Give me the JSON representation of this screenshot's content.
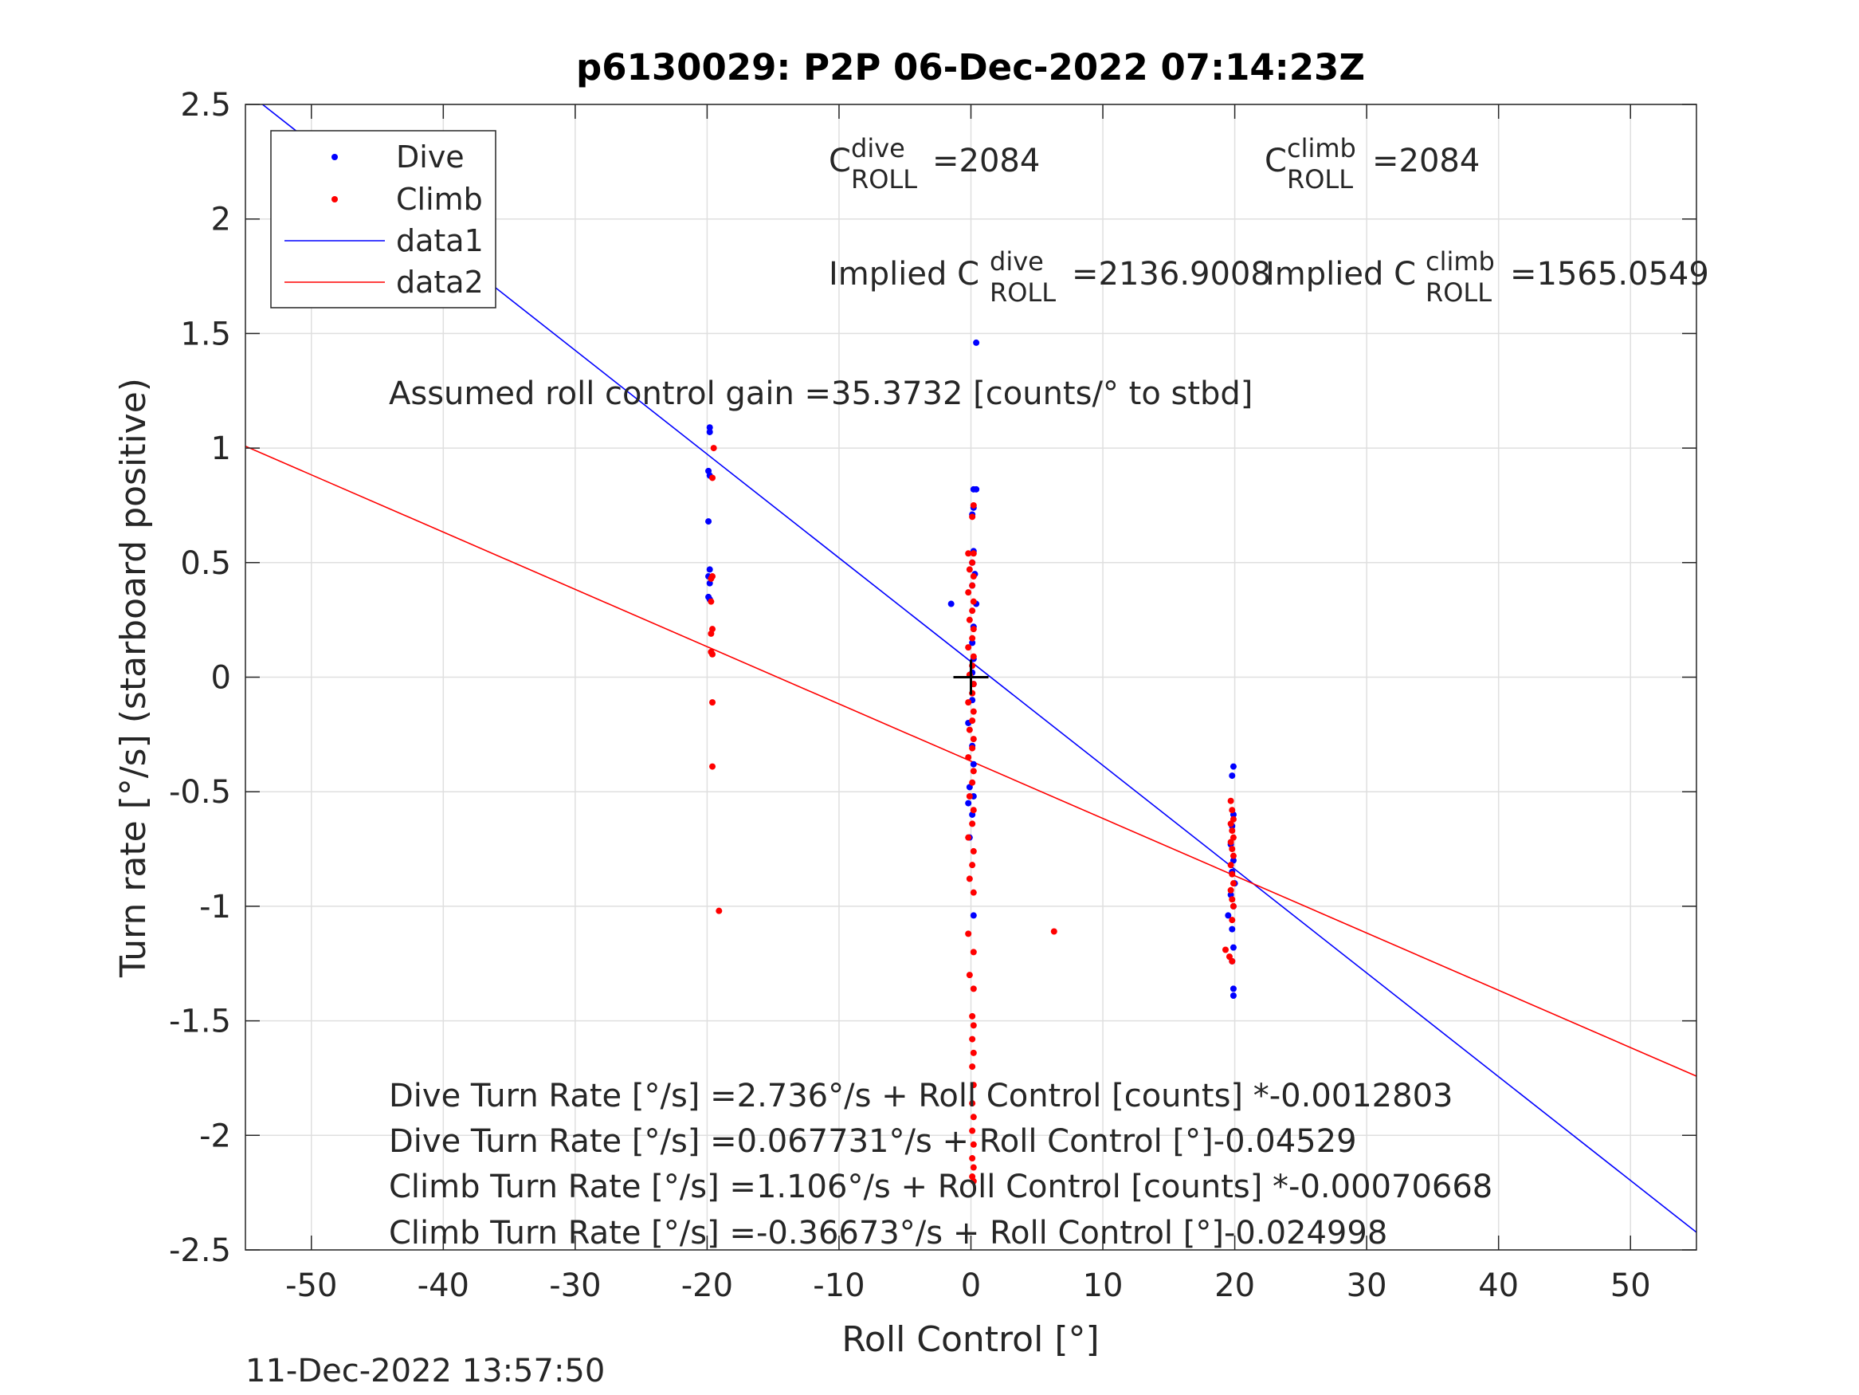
{
  "chart_data": {
    "type": "scatter",
    "title": "p6130029: P2P 06-Dec-2022 07:14:23Z",
    "xlabel": "Roll Control [°]",
    "ylabel": "Turn rate [°/s] (starboard positive)",
    "xlim": [
      -55,
      55
    ],
    "ylim": [
      -2.5,
      2.5
    ],
    "xticks": [
      -50,
      -40,
      -30,
      -20,
      -10,
      0,
      10,
      20,
      30,
      40,
      50
    ],
    "yticks": [
      -2.5,
      -2,
      -1.5,
      -1,
      -0.5,
      0,
      0.5,
      1,
      1.5,
      2,
      2.5
    ],
    "xtick_labels": [
      "-50",
      "-40",
      "-30",
      "-20",
      "-10",
      "0",
      "10",
      "20",
      "30",
      "40",
      "50"
    ],
    "ytick_labels": [
      "-2.5",
      "-2",
      "-1.5",
      "-1",
      "-0.5",
      "0",
      "0.5",
      "1",
      "1.5",
      "2",
      "2.5"
    ],
    "grid": true,
    "legend_position": "top-left",
    "series": [
      {
        "name": "Dive",
        "kind": "scatter",
        "color": "#0000ff",
        "points": [
          [
            -19.8,
            1.09
          ],
          [
            -19.8,
            1.07
          ],
          [
            -19.9,
            0.9
          ],
          [
            -19.8,
            0.88
          ],
          [
            -19.9,
            0.68
          ],
          [
            -19.8,
            0.47
          ],
          [
            -19.9,
            0.44
          ],
          [
            -19.8,
            0.41
          ],
          [
            -19.9,
            0.35
          ],
          [
            -19.8,
            0.34
          ],
          [
            0.4,
            1.46
          ],
          [
            0.2,
            0.82
          ],
          [
            0.4,
            0.82
          ],
          [
            0.2,
            0.74
          ],
          [
            0.1,
            0.71
          ],
          [
            0.2,
            0.55
          ],
          [
            0.1,
            0.5
          ],
          [
            0.3,
            0.45
          ],
          [
            0.1,
            0.4
          ],
          [
            0.4,
            0.32
          ],
          [
            -1.5,
            0.32
          ],
          [
            0.2,
            0.22
          ],
          [
            0.1,
            0.15
          ],
          [
            0.2,
            0.08
          ],
          [
            0.1,
            0.02
          ],
          [
            0.2,
            -0.03
          ],
          [
            0.1,
            -0.1
          ],
          [
            -0.2,
            -0.2
          ],
          [
            0.1,
            -0.3
          ],
          [
            0.2,
            -0.38
          ],
          [
            -0.1,
            -0.48
          ],
          [
            0.2,
            -0.52
          ],
          [
            -0.2,
            -0.55
          ],
          [
            0.1,
            -0.6
          ],
          [
            -0.1,
            -0.7
          ],
          [
            0.2,
            -1.04
          ],
          [
            19.9,
            -0.39
          ],
          [
            19.8,
            -0.43
          ],
          [
            19.9,
            -0.6
          ],
          [
            19.8,
            -0.65
          ],
          [
            19.7,
            -0.73
          ],
          [
            19.9,
            -0.8
          ],
          [
            19.8,
            -0.85
          ],
          [
            20.0,
            -0.9
          ],
          [
            19.7,
            -0.95
          ],
          [
            19.9,
            -1.0
          ],
          [
            19.5,
            -1.04
          ],
          [
            19.8,
            -1.1
          ],
          [
            19.9,
            -1.18
          ],
          [
            19.8,
            -1.24
          ],
          [
            19.9,
            -1.36
          ],
          [
            19.9,
            -1.39
          ]
        ]
      },
      {
        "name": "Climb",
        "kind": "scatter",
        "color": "#ff0000",
        "points": [
          [
            -19.5,
            1.0
          ],
          [
            -19.6,
            0.87
          ],
          [
            -19.6,
            0.44
          ],
          [
            -19.7,
            0.43
          ],
          [
            -19.7,
            0.33
          ],
          [
            -19.6,
            0.21
          ],
          [
            -19.7,
            0.19
          ],
          [
            -19.7,
            0.11
          ],
          [
            -19.6,
            0.1
          ],
          [
            -19.6,
            -0.11
          ],
          [
            -19.6,
            -0.39
          ],
          [
            -19.1,
            -1.02
          ],
          [
            6.3,
            -1.11
          ],
          [
            0.2,
            0.75
          ],
          [
            0.1,
            0.7
          ],
          [
            -0.2,
            0.54
          ],
          [
            0.2,
            0.54
          ],
          [
            0.1,
            0.5
          ],
          [
            -0.1,
            0.47
          ],
          [
            0.2,
            0.44
          ],
          [
            0.1,
            0.4
          ],
          [
            -0.2,
            0.37
          ],
          [
            0.2,
            0.33
          ],
          [
            0.1,
            0.29
          ],
          [
            -0.1,
            0.25
          ],
          [
            0.2,
            0.21
          ],
          [
            0.1,
            0.17
          ],
          [
            -0.2,
            0.13
          ],
          [
            0.2,
            0.09
          ],
          [
            0.1,
            0.05
          ],
          [
            -0.1,
            0.01
          ],
          [
            0.2,
            -0.03
          ],
          [
            0.1,
            -0.07
          ],
          [
            -0.2,
            -0.11
          ],
          [
            0.2,
            -0.15
          ],
          [
            0.1,
            -0.19
          ],
          [
            -0.1,
            -0.23
          ],
          [
            0.2,
            -0.27
          ],
          [
            0.1,
            -0.31
          ],
          [
            -0.2,
            -0.35
          ],
          [
            0.2,
            -0.41
          ],
          [
            0.1,
            -0.46
          ],
          [
            -0.1,
            -0.52
          ],
          [
            0.2,
            -0.58
          ],
          [
            0.1,
            -0.64
          ],
          [
            -0.2,
            -0.7
          ],
          [
            0.2,
            -0.76
          ],
          [
            0.1,
            -0.82
          ],
          [
            -0.1,
            -0.88
          ],
          [
            0.2,
            -0.94
          ],
          [
            -0.2,
            -1.12
          ],
          [
            0.2,
            -1.2
          ],
          [
            -0.1,
            -1.3
          ],
          [
            0.2,
            -1.36
          ],
          [
            0.1,
            -1.48
          ],
          [
            0.2,
            -1.52
          ],
          [
            0.1,
            -1.58
          ],
          [
            0.2,
            -1.64
          ],
          [
            0.1,
            -1.7
          ],
          [
            0.2,
            -1.78
          ],
          [
            0.1,
            -1.86
          ],
          [
            0.2,
            -1.92
          ],
          [
            0.1,
            -1.98
          ],
          [
            0.2,
            -2.04
          ],
          [
            0.1,
            -2.1
          ],
          [
            0.2,
            -2.14
          ],
          [
            0.1,
            -2.18
          ],
          [
            0.2,
            -2.2
          ],
          [
            19.7,
            -0.54
          ],
          [
            19.8,
            -0.58
          ],
          [
            19.9,
            -0.62
          ],
          [
            19.7,
            -0.64
          ],
          [
            19.8,
            -0.67
          ],
          [
            19.9,
            -0.7
          ],
          [
            19.7,
            -0.72
          ],
          [
            19.8,
            -0.75
          ],
          [
            19.9,
            -0.78
          ],
          [
            19.7,
            -0.82
          ],
          [
            19.8,
            -0.86
          ],
          [
            19.9,
            -0.9
          ],
          [
            19.7,
            -0.93
          ],
          [
            19.8,
            -0.97
          ],
          [
            19.9,
            -1.0
          ],
          [
            19.8,
            -1.06
          ],
          [
            19.3,
            -1.19
          ],
          [
            19.6,
            -1.22
          ],
          [
            19.8,
            -1.24
          ]
        ]
      },
      {
        "name": "data1",
        "kind": "line",
        "color": "#0000ff",
        "intercept": 0.067731,
        "slope": -0.04529
      },
      {
        "name": "data2",
        "kind": "line",
        "color": "#ff0000",
        "intercept": -0.36673,
        "slope": -0.024998
      }
    ],
    "center_marker": {
      "x": 0,
      "y": 0,
      "color": "#000000"
    },
    "annotations": {
      "c_roll_dive": {
        "prefix": "C",
        "sup": "dive",
        "sub": "ROLL",
        "value": "=2084"
      },
      "c_roll_climb": {
        "prefix": "C",
        "sup": "climb",
        "sub": "ROLL",
        "value": "=2084"
      },
      "implied_dive": {
        "prefix": "Implied C",
        "sup": "dive",
        "sub": "ROLL",
        "value": "=2136.9008"
      },
      "implied_climb": {
        "prefix": "Implied C",
        "sup": "climb",
        "sub": "ROLL",
        "value": "=1565.0549"
      },
      "gain": "Assumed roll control gain =35.3732 [counts/° to stbd]",
      "eq_dive_counts": "Dive Turn Rate [°/s] =2.736°/s + Roll Control [counts] *-0.0012803",
      "eq_dive_deg": "Dive Turn Rate [°/s] =0.067731°/s + Roll Control [°]-0.04529",
      "eq_climb_counts": "Climb Turn Rate [°/s] =1.106°/s + Roll Control [counts] *-0.00070668",
      "eq_climb_deg": "Climb Turn Rate [°/s] =-0.36673°/s + Roll Control [°]-0.024998"
    },
    "footer_timestamp": "11-Dec-2022 13:57:50"
  }
}
